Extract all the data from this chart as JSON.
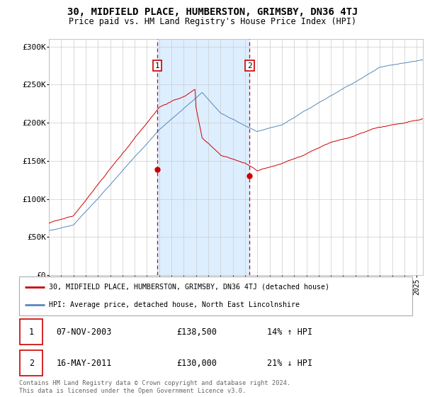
{
  "title": "30, MIDFIELD PLACE, HUMBERSTON, GRIMSBY, DN36 4TJ",
  "subtitle": "Price paid vs. HM Land Registry's House Price Index (HPI)",
  "ylabel_ticks": [
    "£0",
    "£50K",
    "£100K",
    "£150K",
    "£200K",
    "£250K",
    "£300K"
  ],
  "ytick_values": [
    0,
    50000,
    100000,
    150000,
    200000,
    250000,
    300000
  ],
  "ylim": [
    0,
    310000
  ],
  "xlim_start": 1995.0,
  "xlim_end": 2025.5,
  "transaction1_x": 2003.85,
  "transaction1_y": 138500,
  "transaction2_x": 2011.37,
  "transaction2_y": 130000,
  "legend_line1": "30, MIDFIELD PLACE, HUMBERSTON, GRIMSBY, DN36 4TJ (detached house)",
  "legend_line2": "HPI: Average price, detached house, North East Lincolnshire",
  "table_row1_num": "1",
  "table_row1_date": "07-NOV-2003",
  "table_row1_price": "£138,500",
  "table_row1_hpi": "14% ↑ HPI",
  "table_row2_num": "2",
  "table_row2_date": "16-MAY-2011",
  "table_row2_price": "£130,000",
  "table_row2_hpi": "21% ↓ HPI",
  "footer": "Contains HM Land Registry data © Crown copyright and database right 2024.\nThis data is licensed under the Open Government Licence v3.0.",
  "red_color": "#cc0000",
  "blue_color": "#5588bb",
  "shade_color": "#ddeeff",
  "background_color": "#ffffff",
  "grid_color": "#cccccc"
}
